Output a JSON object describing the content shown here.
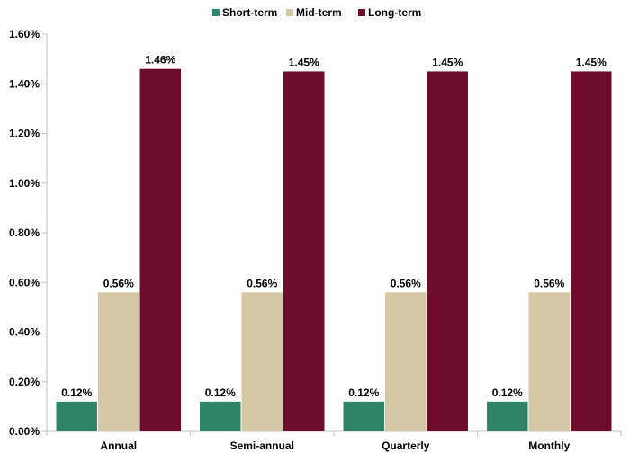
{
  "chart_data": {
    "type": "bar",
    "title": "",
    "xlabel": "",
    "ylabel": "",
    "categories": [
      "Annual",
      "Semi-annual",
      "Quarterly",
      "Monthly"
    ],
    "series": [
      {
        "name": "Short-term",
        "values": [
          0.12,
          0.12,
          0.12,
          0.12
        ],
        "labels": [
          "0.12%",
          "0.12%",
          "0.12%",
          "0.12%"
        ],
        "color": "#2e8567"
      },
      {
        "name": "Mid-term",
        "values": [
          0.56,
          0.56,
          0.56,
          0.56
        ],
        "labels": [
          "0.56%",
          "0.56%",
          "0.56%",
          "0.56%"
        ],
        "color": "#d3c7a6"
      },
      {
        "name": "Long-term",
        "values": [
          1.46,
          1.45,
          1.45,
          1.45
        ],
        "labels": [
          "1.46%",
          "1.45%",
          "1.45%",
          "1.45%"
        ],
        "color": "#6e0c2b"
      }
    ],
    "ylim": [
      0,
      1.6
    ],
    "yticks": [
      0,
      0.2,
      0.4,
      0.6,
      0.8,
      1.0,
      1.2,
      1.4,
      1.6
    ],
    "ytick_labels": [
      "0.00%",
      "0.20%",
      "0.40%",
      "0.60%",
      "0.80%",
      "1.00%",
      "1.20%",
      "1.40%",
      "1.60%"
    ],
    "legend_position": "top-center",
    "grid": false
  }
}
